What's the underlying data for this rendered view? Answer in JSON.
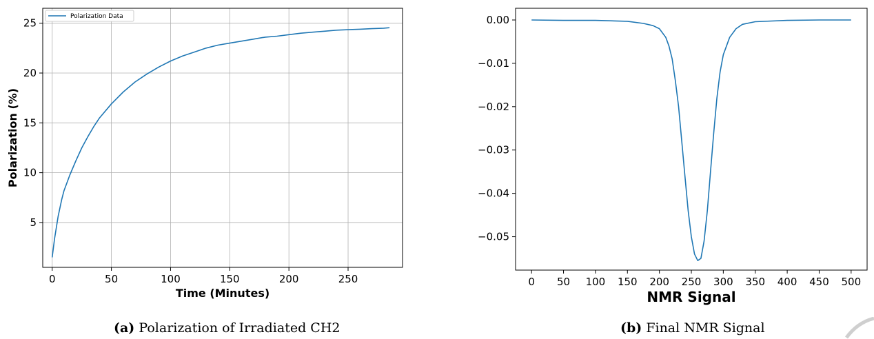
{
  "chart_data": [
    {
      "type": "line",
      "caption_tag": "(a)",
      "caption_text": "Polarization of Irradiated CH2",
      "xlabel": "Time (Minutes)",
      "ylabel": "Polarization (%)",
      "xlim": [
        -8,
        296
      ],
      "ylim": [
        0.5,
        26.5
      ],
      "xticks": [
        0,
        50,
        100,
        150,
        200,
        250
      ],
      "yticks": [
        5,
        10,
        15,
        20,
        25
      ],
      "grid": true,
      "legend_position": "top-left",
      "color": "#1f77b4",
      "series": [
        {
          "name": "Polarization Data",
          "x": [
            0,
            2,
            5,
            8,
            10,
            15,
            20,
            25,
            30,
            35,
            40,
            50,
            60,
            70,
            80,
            90,
            100,
            110,
            120,
            130,
            140,
            150,
            160,
            170,
            180,
            190,
            200,
            210,
            220,
            230,
            240,
            250,
            260,
            270,
            280,
            285
          ],
          "y": [
            1.5,
            3.4,
            5.6,
            7.3,
            8.2,
            9.8,
            11.2,
            12.5,
            13.6,
            14.6,
            15.5,
            16.9,
            18.1,
            19.1,
            19.9,
            20.6,
            21.2,
            21.7,
            22.1,
            22.5,
            22.8,
            23.0,
            23.2,
            23.4,
            23.6,
            23.7,
            23.85,
            24.0,
            24.1,
            24.2,
            24.3,
            24.35,
            24.4,
            24.45,
            24.5,
            24.55
          ]
        }
      ]
    },
    {
      "type": "line",
      "caption_tag": "(b)",
      "caption_text": "Final NMR Signal",
      "xlabel": "NMR Signal",
      "ylabel": "",
      "xlim": [
        -25,
        525
      ],
      "ylim": [
        -0.0577,
        0.0027
      ],
      "xticks": [
        0,
        50,
        100,
        150,
        200,
        250,
        300,
        350,
        400,
        450,
        500
      ],
      "yticks": [
        0.0,
        -0.01,
        -0.02,
        -0.03,
        -0.04,
        -0.05
      ],
      "ytick_labels": [
        "0.00",
        "−0.01",
        "−0.02",
        "−0.03",
        "−0.04",
        "−0.05"
      ],
      "grid": false,
      "color": "#1f77b4",
      "series": [
        {
          "x": [
            0,
            50,
            100,
            150,
            175,
            190,
            200,
            210,
            215,
            220,
            225,
            230,
            235,
            240,
            245,
            250,
            255,
            260,
            265,
            270,
            275,
            280,
            285,
            290,
            295,
            300,
            310,
            320,
            330,
            350,
            400,
            450,
            500
          ],
          "y": [
            0.0,
            -0.0001,
            -0.0001,
            -0.0003,
            -0.0008,
            -0.0013,
            -0.002,
            -0.004,
            -0.006,
            -0.009,
            -0.014,
            -0.02,
            -0.028,
            -0.036,
            -0.044,
            -0.05,
            -0.054,
            -0.0555,
            -0.055,
            -0.051,
            -0.044,
            -0.035,
            -0.026,
            -0.018,
            -0.012,
            -0.008,
            -0.004,
            -0.002,
            -0.001,
            -0.0004,
            -0.0001,
            0.0,
            0.0
          ]
        }
      ]
    }
  ]
}
